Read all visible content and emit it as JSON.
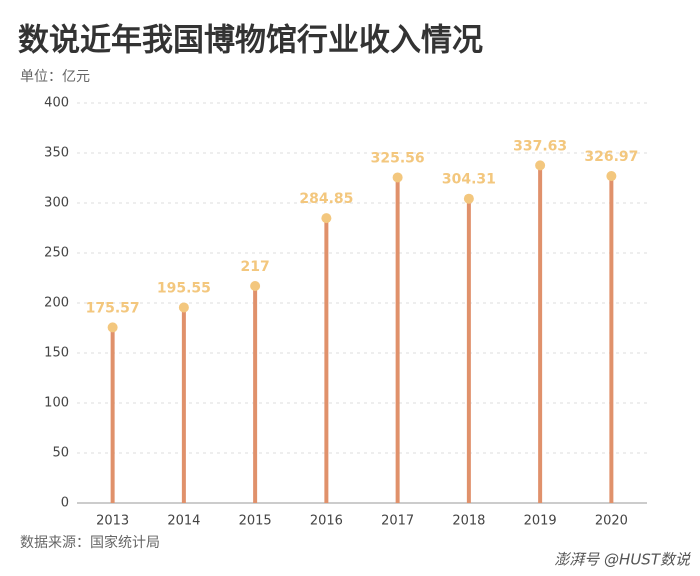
{
  "chart_data": {
    "type": "lollipop",
    "title": "数说近年我国博物馆行业收入情况",
    "subtitle": "单位：亿元",
    "source": "数据来源：国家统计局",
    "watermark": "澎湃号 @HUST数说",
    "categories": [
      "2013",
      "2014",
      "2015",
      "2016",
      "2017",
      "2018",
      "2019",
      "2020"
    ],
    "values": [
      175.57,
      195.55,
      217,
      284.85,
      325.56,
      304.31,
      337.63,
      326.97
    ],
    "color": "#e0916b",
    "marker_color": "#f3c77e",
    "ylim": [
      0,
      400
    ],
    "yticks": [
      0,
      50,
      100,
      150,
      200,
      250,
      300,
      350,
      400
    ],
    "grid": true
  }
}
